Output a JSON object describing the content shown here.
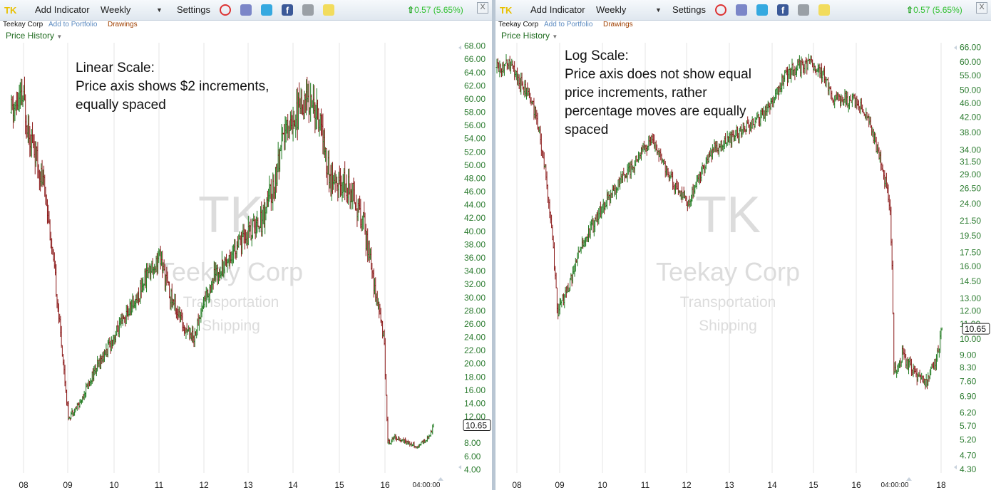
{
  "colors": {
    "up": "#1f7a1f",
    "down": "#8b1a1a",
    "grid": "#e6e6e6",
    "axis_text": "#2e7d32",
    "watermark": "#dcdcdc",
    "ticker": "#e8c000",
    "quote": "#30c030"
  },
  "panels": [
    {
      "toolbar": {
        "ticker": "TK",
        "add_indicator": "Add Indicator",
        "interval": "Weekly",
        "settings": "Settings",
        "quote": "0.57 (5.65%)",
        "close": "X"
      },
      "subbar": {
        "name": "Teekay Corp",
        "add_portfolio": "Add to Portfolio",
        "drawings": "Drawings"
      },
      "history_label": "Price History",
      "watermark": {
        "symbol": "TK",
        "company": "Teekay Corp",
        "sector": "Transportation",
        "industry": "Shipping"
      },
      "annotation": [
        "Linear Scale:",
        "Price axis shows $2 increments,",
        "equally spaced"
      ],
      "time_label": "04:00:00"
    },
    {
      "toolbar": {
        "ticker": "TK",
        "add_indicator": "Add Indicator",
        "interval": "Weekly",
        "settings": "Settings",
        "quote": "0.57 (5.65%)",
        "close": "X"
      },
      "subbar": {
        "name": "Teekay Corp",
        "add_portfolio": "Add to Portfolio",
        "drawings": "Drawings"
      },
      "history_label": "Price History",
      "watermark": {
        "symbol": "TK",
        "company": "Teekay Corp",
        "sector": "Transportation",
        "industry": "Shipping"
      },
      "annotation": [
        "Log Scale:",
        "Price axis does not show equal",
        "price increments, rather",
        "percentage moves are equally",
        "spaced"
      ],
      "time_label": "04:00:00"
    }
  ],
  "chart_data": [
    {
      "type": "line",
      "scale": "linear",
      "title": "",
      "ylim": [
        3.5,
        68.5
      ],
      "y_ticks": [
        "68.00",
        "66.00",
        "64.00",
        "62.00",
        "60.00",
        "58.00",
        "56.00",
        "54.00",
        "52.00",
        "50.00",
        "48.00",
        "46.00",
        "44.00",
        "42.00",
        "40.00",
        "38.00",
        "36.00",
        "34.00",
        "32.00",
        "30.00",
        "28.00",
        "26.00",
        "24.00",
        "22.00",
        "20.00",
        "18.00",
        "16.00",
        "14.00",
        "12.00",
        "8.00",
        "6.00",
        "4.00"
      ],
      "x_ticks": [
        "08",
        "09",
        "10",
        "11",
        "12",
        "13",
        "14",
        "15",
        "16"
      ],
      "last_price": "10.65",
      "grid": true,
      "series": [
        {
          "x": [
            "2007-10",
            "2008-01",
            "2008-04",
            "2008-07",
            "2008-10",
            "2009-01",
            "2009-04",
            "2009-07",
            "2009-10",
            "2010-01",
            "2010-04",
            "2010-07",
            "2010-10",
            "2011-01",
            "2011-04",
            "2011-07",
            "2011-10",
            "2012-01",
            "2012-04",
            "2012-07",
            "2012-10",
            "2013-01",
            "2013-04",
            "2013-07",
            "2013-10",
            "2014-01",
            "2014-04",
            "2014-07",
            "2014-10",
            "2015-01",
            "2015-04",
            "2015-07",
            "2015-10",
            "2015-12",
            "2016-01",
            "2016-03",
            "2016-06",
            "2016-09",
            "2016-12",
            "2017-01"
          ],
          "values": [
            58,
            60,
            52,
            46,
            30,
            12,
            14,
            18,
            21,
            24,
            27,
            30,
            34,
            36,
            30,
            26,
            24,
            30,
            34,
            36,
            38,
            40,
            42,
            47,
            55,
            58,
            60,
            57,
            47,
            47,
            46,
            40,
            30,
            24,
            8,
            9,
            8,
            7.5,
            9,
            10.65
          ]
        }
      ]
    },
    {
      "type": "line",
      "scale": "log",
      "title": "",
      "ylim": [
        4.2,
        68
      ],
      "y_ticks": [
        "66.00",
        "60.00",
        "55.00",
        "50.00",
        "46.00",
        "42.00",
        "38.00",
        "34.00",
        "31.50",
        "29.00",
        "26.50",
        "24.00",
        "21.50",
        "19.50",
        "17.50",
        "16.00",
        "14.50",
        "13.00",
        "12.00",
        "11.00",
        "10.00",
        "9.00",
        "8.30",
        "7.60",
        "6.90",
        "6.20",
        "5.70",
        "5.20",
        "4.70",
        "4.30"
      ],
      "x_ticks": [
        "08",
        "09",
        "10",
        "11",
        "12",
        "13",
        "14",
        "15",
        "16",
        "18"
      ],
      "last_price": "10.65",
      "grid": true,
      "series": [
        {
          "x": [
            "2007-10",
            "2008-01",
            "2008-04",
            "2008-07",
            "2008-10",
            "2009-01",
            "2009-04",
            "2009-07",
            "2009-10",
            "2010-01",
            "2010-04",
            "2010-07",
            "2010-10",
            "2011-01",
            "2011-04",
            "2011-07",
            "2011-10",
            "2012-01",
            "2012-04",
            "2012-07",
            "2012-10",
            "2013-01",
            "2013-04",
            "2013-07",
            "2013-10",
            "2014-01",
            "2014-04",
            "2014-07",
            "2014-10",
            "2015-01",
            "2015-04",
            "2015-07",
            "2015-10",
            "2015-12",
            "2016-01",
            "2016-03",
            "2016-06",
            "2016-09",
            "2016-12",
            "2017-01"
          ],
          "values": [
            58,
            60,
            52,
            46,
            30,
            12,
            14,
            18,
            21,
            24,
            27,
            30,
            34,
            36,
            30,
            26,
            24,
            30,
            34,
            36,
            38,
            40,
            42,
            47,
            55,
            58,
            60,
            57,
            47,
            47,
            46,
            40,
            30,
            24,
            8,
            9,
            8,
            7.5,
            9,
            10.65
          ]
        }
      ]
    }
  ]
}
